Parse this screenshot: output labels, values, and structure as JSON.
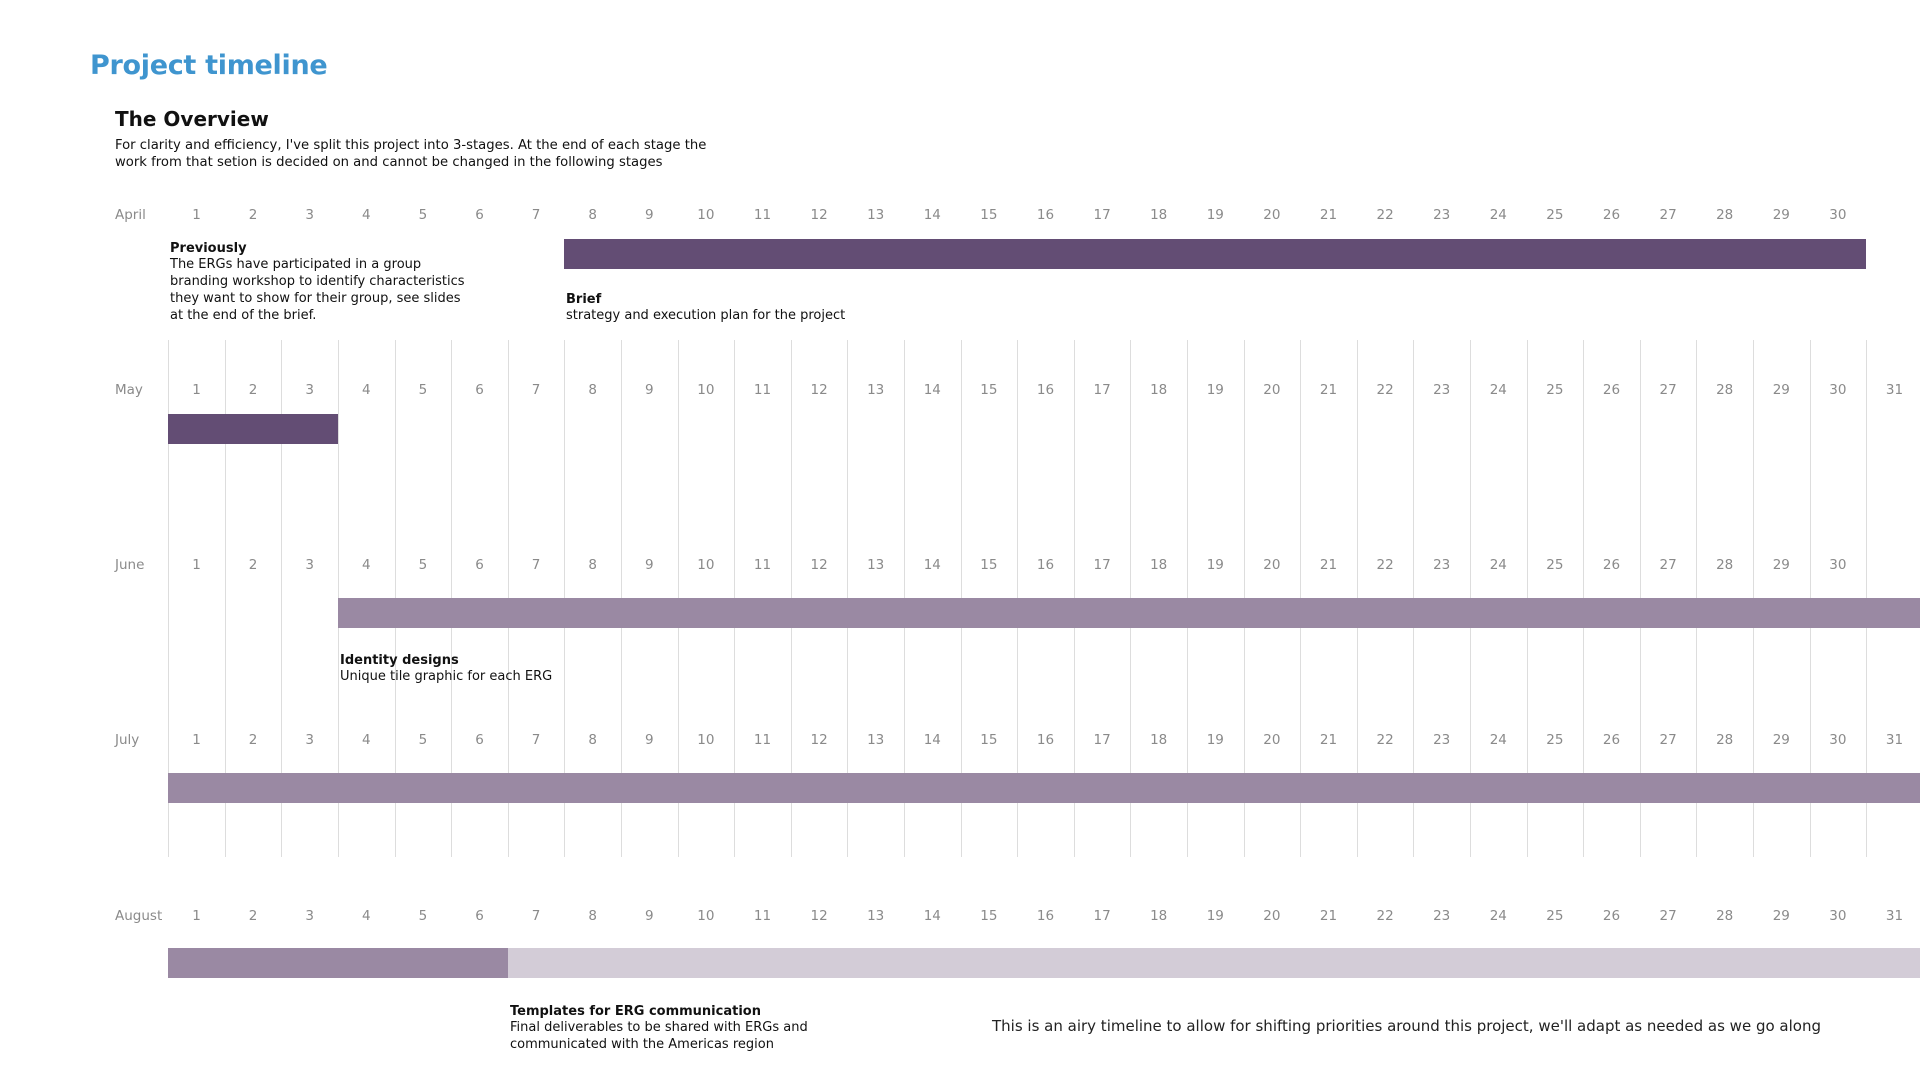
{
  "title": "Project timeline",
  "overview": {
    "heading": "The Overview",
    "text": "For clarity and efficiency, I've split this project into 3-stages. At the end of each stage the work from that setion is decided on and cannot be changed in the following stages"
  },
  "colors": {
    "title": "#3f95cf",
    "dark_purple": "#634d74",
    "mid_purple": "#9a89a3",
    "light_purple": "#d3ccd7",
    "grid": "#dddddd",
    "day_label": "#8a8a8a"
  },
  "months": [
    {
      "name": "April",
      "days": 30
    },
    {
      "name": "May",
      "days": 31
    },
    {
      "name": "June",
      "days": 30
    },
    {
      "name": "July",
      "days": 31
    },
    {
      "name": "August",
      "days": 31
    }
  ],
  "bars": [
    {
      "name": "brief-bar",
      "month": 0,
      "start_day": 8,
      "end_day": 31,
      "color": "#634d74"
    },
    {
      "name": "brief-bar-continued",
      "month": 1,
      "start_day": 1,
      "end_day": 4,
      "color": "#634d74"
    },
    {
      "name": "identity-designs-bar",
      "month": 2,
      "start_day": 4,
      "end_day": 32,
      "color": "#9a89a3"
    },
    {
      "name": "identity-designs-bar-continued",
      "month": 3,
      "start_day": 1,
      "end_day": 32,
      "color": "#9a89a3"
    },
    {
      "name": "identity-designs-bar-end",
      "month": 4,
      "start_day": 1,
      "end_day": 7,
      "color": "#9a89a3"
    },
    {
      "name": "templates-bar",
      "month": 4,
      "start_day": 7,
      "end_day": 32,
      "color": "#d3ccd7"
    }
  ],
  "notes": {
    "previously": {
      "title": "Previously",
      "text": "The ERGs have participated in a group branding workshop to identify characteristics they want to show for their group, see slides at the end of the brief."
    },
    "brief": {
      "title": "Brief",
      "text": "strategy and execution plan for the project"
    },
    "identity": {
      "title": "Identity designs",
      "text": "Unique tile graphic for each ERG"
    },
    "templates": {
      "title": "Templates for ERG communication",
      "text": "Final deliverables to be shared with ERGs and communicated with the Americas region"
    }
  },
  "footer_note": "This is an airy timeline to allow for shifting priorities around this project, we'll adapt as needed as we go along"
}
